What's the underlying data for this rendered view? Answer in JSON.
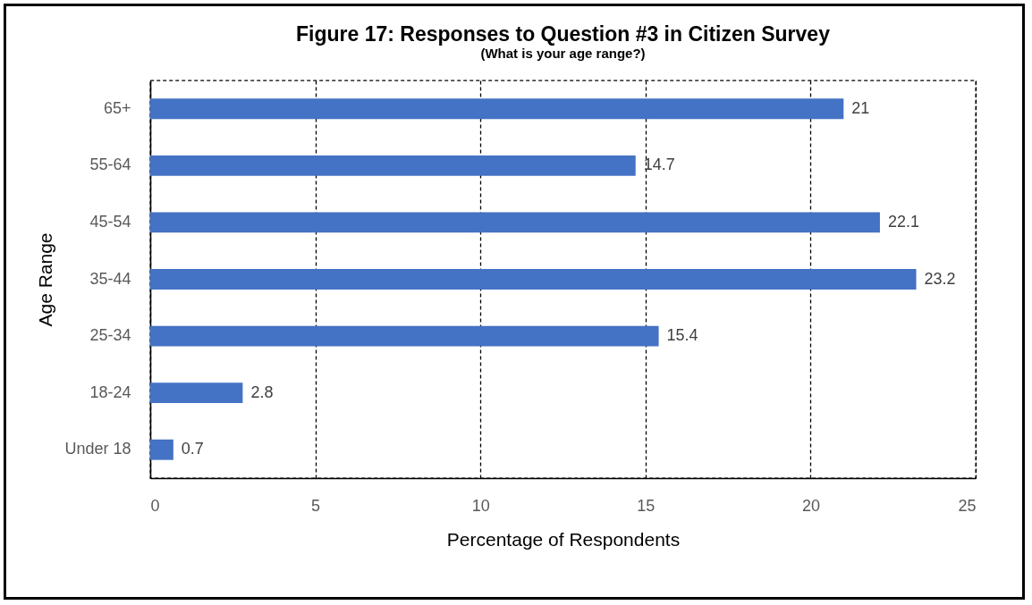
{
  "chart_data": {
    "type": "bar",
    "orientation": "horizontal",
    "title": "Figure 17:  Responses to Question #3 in Citizen Survey",
    "subtitle": "(What is your age range?)",
    "xlabel": "Percentage of Respondents",
    "ylabel": "Age Range",
    "categories": [
      "65+",
      "55-64",
      "45-54",
      "35-44",
      "25-34",
      "18-24",
      "Under 18"
    ],
    "values": [
      21,
      14.7,
      22.1,
      23.2,
      15.4,
      2.8,
      0.7
    ],
    "color": "#4472c4",
    "xlim": [
      0,
      25
    ],
    "xticks": [
      0,
      5,
      10,
      15,
      20,
      25
    ],
    "grid": "x",
    "data_labels": true
  }
}
